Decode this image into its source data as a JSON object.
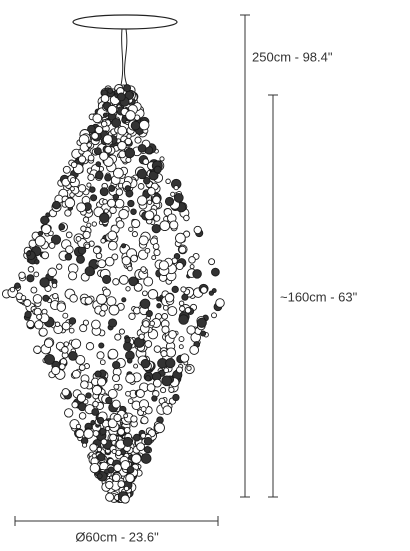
{
  "dimensions": {
    "total_height": "250cm - 98.4\"",
    "body_height": "~160cm - 63\"",
    "diameter": "Ø60cm - 23.6\""
  }
}
